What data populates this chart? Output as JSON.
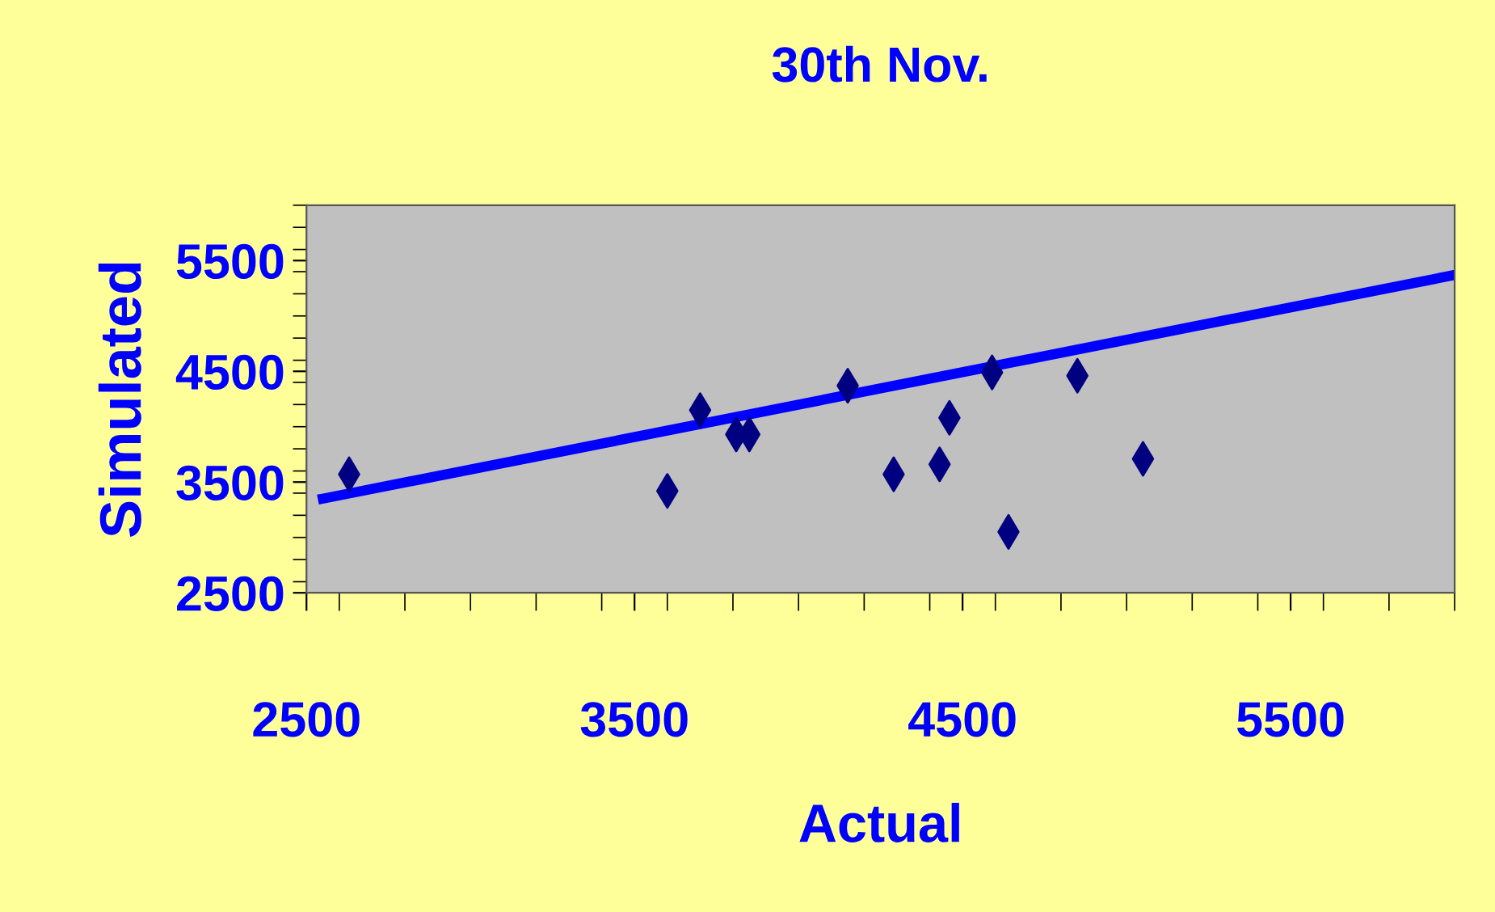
{
  "chart_data": {
    "type": "scatter",
    "title": "30th Nov.",
    "xlabel": "Actual",
    "ylabel": "Simulated",
    "xlim": [
      2500,
      6000
    ],
    "ylim": [
      2500,
      6000
    ],
    "xticks": [
      2500,
      3500,
      4500,
      5500
    ],
    "yticks": [
      2500,
      3500,
      4500,
      5500
    ],
    "grid": false,
    "legend": false,
    "series": [
      {
        "marker": "diamond",
        "color": "#000080",
        "x": [
          2630,
          3600,
          3700,
          3810,
          3850,
          4150,
          4290,
          4430,
          4460,
          4590,
          4640,
          4850,
          5050
        ],
        "values": [
          3570,
          3420,
          4150,
          3930,
          3930,
          4370,
          3570,
          3660,
          4080,
          4490,
          3050,
          4460,
          3710
        ]
      },
      {
        "type": "line",
        "marker": "none",
        "color": "#0000ff",
        "line_style": "solid",
        "x": [
          2550,
          6000
        ],
        "values": [
          3350,
          5370
        ]
      }
    ]
  }
}
